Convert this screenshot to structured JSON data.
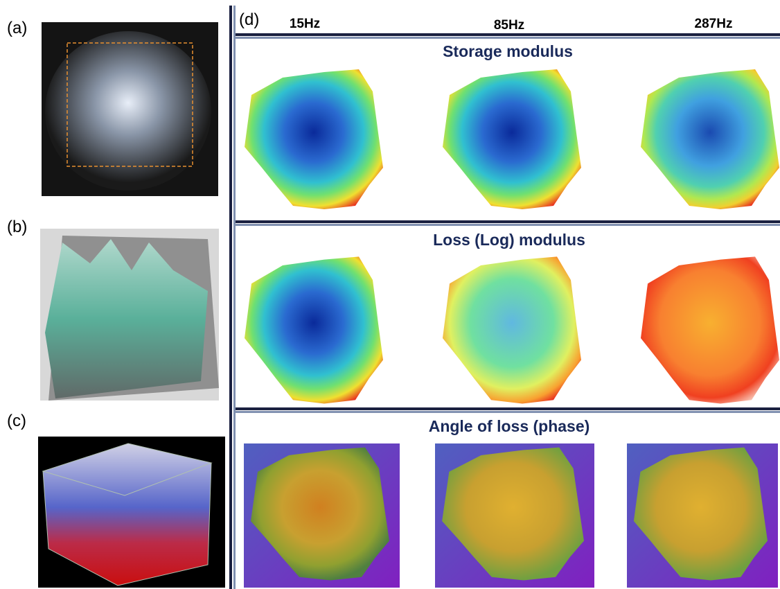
{
  "panel_labels": [
    "(a)",
    "(b)",
    "(c)",
    "(d)"
  ],
  "frequencies": [
    "15Hz",
    "85Hz",
    "287Hz"
  ],
  "row_titles": [
    "Storage modulus",
    "Loss (Log) modulus",
    "Angle of loss (phase)"
  ]
}
